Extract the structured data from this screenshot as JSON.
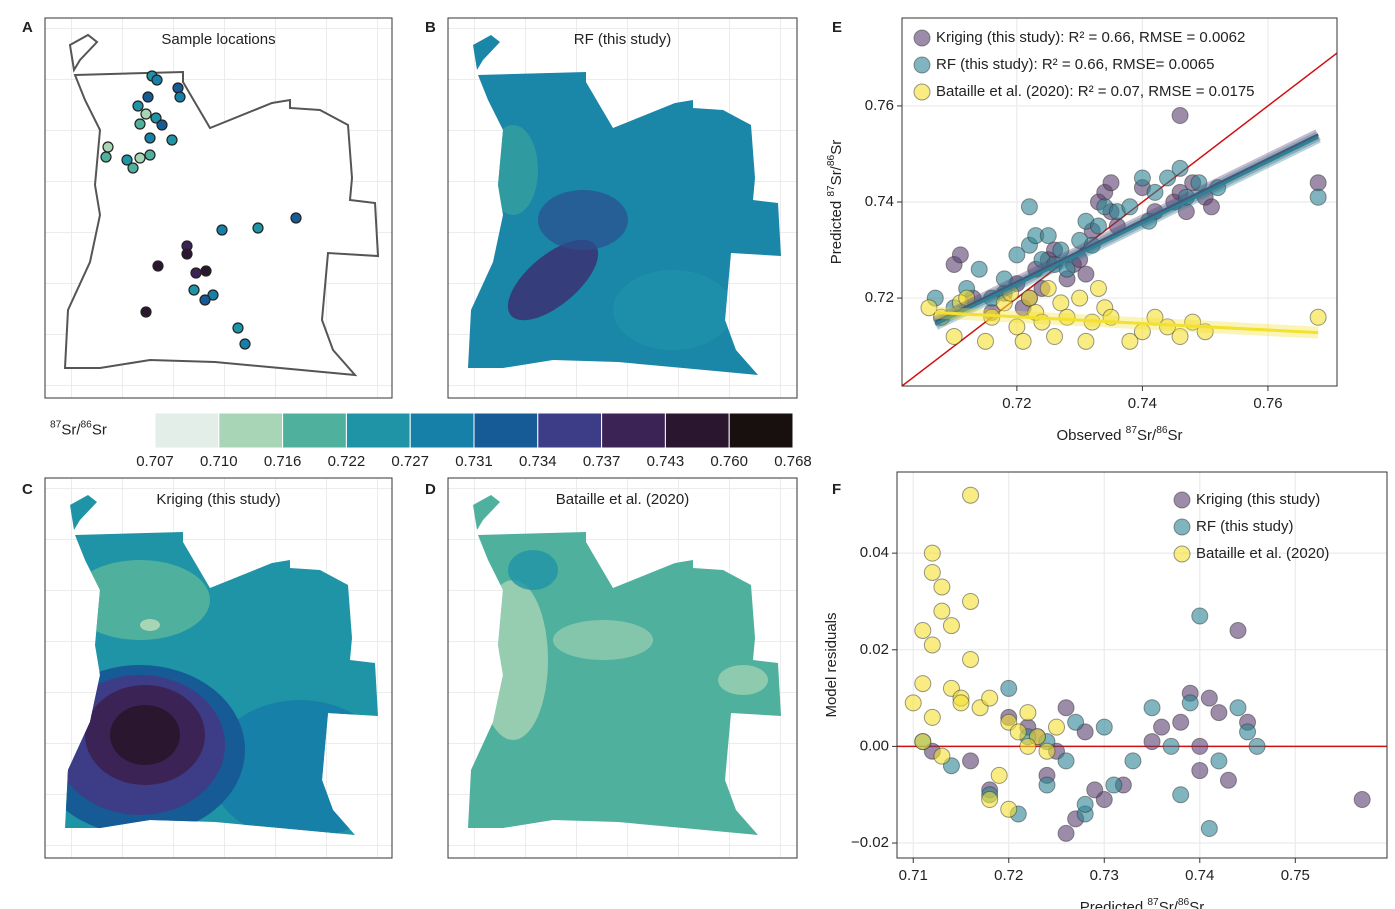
{
  "chart_data": [
    {
      "type": "map",
      "panel": "A",
      "title": "Sample locations"
    },
    {
      "type": "map",
      "panel": "B",
      "title": "RF (this study)"
    },
    {
      "type": "map",
      "panel": "C",
      "title": "Kriging (this study)"
    },
    {
      "type": "map",
      "panel": "D",
      "title": "Bataille et al. (2020)"
    },
    {
      "type": "scatter",
      "panel": "E",
      "xlabel": [
        "Observed ",
        "87",
        "Sr/",
        "86",
        "Sr"
      ],
      "ylabel": [
        "Predicted ",
        "87",
        "Sr/",
        "86",
        "Sr"
      ],
      "xlim": [
        0.7017,
        0.771
      ],
      "ylim": [
        0.7017,
        0.7783
      ],
      "xticks": [
        0.72,
        0.74,
        0.76
      ],
      "yticks": [
        0.72,
        0.74,
        0.76
      ],
      "grid": true,
      "diagonal": true,
      "legend": "top-left",
      "series": [
        {
          "name": "Kriging (this study): R² = 0.66, RMSE = 0.0062",
          "color": "#5b3f70",
          "x": [
            0.71,
            0.711,
            0.713,
            0.716,
            0.718,
            0.72,
            0.721,
            0.722,
            0.723,
            0.724,
            0.725,
            0.726,
            0.728,
            0.729,
            0.73,
            0.731,
            0.732,
            0.733,
            0.734,
            0.735,
            0.735,
            0.736,
            0.74,
            0.742,
            0.745,
            0.746,
            0.747,
            0.748,
            0.75,
            0.751,
            0.768,
            0.746
          ],
          "values": [
            0.727,
            0.729,
            0.72,
            0.717,
            0.721,
            0.723,
            0.718,
            0.72,
            0.726,
            0.722,
            0.728,
            0.73,
            0.724,
            0.727,
            0.728,
            0.725,
            0.734,
            0.74,
            0.742,
            0.744,
            0.738,
            0.735,
            0.743,
            0.738,
            0.74,
            0.742,
            0.738,
            0.744,
            0.741,
            0.739,
            0.744,
            0.758
          ],
          "fit": {
            "x": [
              0.707,
              0.768
            ],
            "y": [
              0.715,
              0.754
            ]
          }
        },
        {
          "name": "RF (this study): R² = 0.66, RMSE= 0.0065",
          "color": "#2b8494",
          "x": [
            0.707,
            0.71,
            0.712,
            0.714,
            0.716,
            0.718,
            0.72,
            0.722,
            0.723,
            0.724,
            0.725,
            0.726,
            0.727,
            0.728,
            0.73,
            0.731,
            0.732,
            0.733,
            0.734,
            0.736,
            0.738,
            0.74,
            0.741,
            0.742,
            0.744,
            0.746,
            0.747,
            0.749,
            0.752,
            0.768,
            0.722
          ],
          "values": [
            0.72,
            0.718,
            0.722,
            0.726,
            0.72,
            0.724,
            0.729,
            0.731,
            0.733,
            0.728,
            0.733,
            0.727,
            0.73,
            0.726,
            0.732,
            0.736,
            0.731,
            0.735,
            0.739,
            0.738,
            0.739,
            0.745,
            0.736,
            0.742,
            0.745,
            0.747,
            0.741,
            0.744,
            0.743,
            0.741,
            0.739
          ],
          "fit": {
            "x": [
              0.707,
              0.768
            ],
            "y": [
              0.7145,
              0.7535
            ]
          }
        },
        {
          "name": "Bataille et al. (2020): R² = 0.07, RMSE = 0.0175",
          "color": "#f3e030",
          "x": [
            0.706,
            0.708,
            0.71,
            0.711,
            0.712,
            0.715,
            0.716,
            0.718,
            0.719,
            0.72,
            0.721,
            0.722,
            0.723,
            0.724,
            0.725,
            0.726,
            0.727,
            0.728,
            0.73,
            0.731,
            0.732,
            0.733,
            0.734,
            0.735,
            0.738,
            0.74,
            0.742,
            0.744,
            0.746,
            0.748,
            0.75,
            0.768
          ],
          "values": [
            0.718,
            0.716,
            0.712,
            0.719,
            0.72,
            0.711,
            0.716,
            0.719,
            0.721,
            0.714,
            0.711,
            0.72,
            0.717,
            0.715,
            0.722,
            0.712,
            0.719,
            0.716,
            0.72,
            0.711,
            0.715,
            0.722,
            0.718,
            0.716,
            0.711,
            0.713,
            0.716,
            0.714,
            0.712,
            0.715,
            0.713,
            0.716
          ],
          "fit": {
            "x": [
              0.707,
              0.768
            ],
            "y": [
              0.717,
              0.7128
            ]
          }
        }
      ]
    },
    {
      "type": "scatter",
      "panel": "F",
      "xlabel": [
        "Predicted ",
        "87",
        "Sr/",
        "86",
        "Sr"
      ],
      "ylabel": [
        "Model residuals"
      ],
      "xlim": [
        0.7083,
        0.7596
      ],
      "ylim": [
        -0.0231,
        0.0568
      ],
      "xticks": [
        0.71,
        0.72,
        0.73,
        0.74,
        0.75
      ],
      "yticks": [
        {
          "value": -0.02,
          "label": "−0.02"
        },
        {
          "value": 0,
          "label": "0.00"
        },
        0.02,
        0.04
      ],
      "grid": true,
      "zero_line": true,
      "legend": "top-right",
      "series": [
        {
          "name": "Kriging (this study)",
          "color": "#5b3f70",
          "x": [
            0.712,
            0.716,
            0.718,
            0.72,
            0.722,
            0.723,
            0.724,
            0.725,
            0.726,
            0.727,
            0.728,
            0.73,
            0.732,
            0.735,
            0.738,
            0.739,
            0.74,
            0.741,
            0.742,
            0.743,
            0.744,
            0.745,
            0.757,
            0.726,
            0.729,
            0.736,
            0.74
          ],
          "values": [
            -0.001,
            -0.003,
            -0.009,
            0.006,
            0.004,
            0.002,
            -0.006,
            -0.001,
            0.008,
            -0.015,
            0.003,
            -0.011,
            -0.008,
            0.001,
            0.005,
            0.011,
            -0.005,
            0.01,
            0.007,
            -0.007,
            0.024,
            0.005,
            -0.011,
            -0.018,
            -0.009,
            0.004,
            0.0
          ]
        },
        {
          "name": "RF (this study)",
          "color": "#2b8494",
          "x": [
            0.711,
            0.714,
            0.718,
            0.72,
            0.721,
            0.722,
            0.724,
            0.726,
            0.727,
            0.728,
            0.73,
            0.731,
            0.733,
            0.735,
            0.737,
            0.738,
            0.739,
            0.74,
            0.741,
            0.742,
            0.744,
            0.745,
            0.746,
            0.728,
            0.724
          ],
          "values": [
            0.001,
            -0.004,
            -0.01,
            0.012,
            -0.014,
            0.002,
            -0.008,
            -0.003,
            0.005,
            -0.014,
            0.004,
            -0.008,
            -0.003,
            0.008,
            0.0,
            -0.01,
            0.009,
            0.027,
            -0.017,
            -0.003,
            0.008,
            0.003,
            0.0,
            -0.012,
            0.001
          ]
        },
        {
          "name": "Bataille et al. (2020)",
          "color": "#f3e030",
          "x": [
            0.71,
            0.711,
            0.711,
            0.712,
            0.712,
            0.712,
            0.713,
            0.713,
            0.714,
            0.714,
            0.715,
            0.716,
            0.716,
            0.716,
            0.717,
            0.718,
            0.719,
            0.72,
            0.721,
            0.722,
            0.723,
            0.724,
            0.725,
            0.711,
            0.712,
            0.713,
            0.715,
            0.718,
            0.72,
            0.722
          ],
          "values": [
            0.009,
            0.013,
            0.024,
            0.036,
            0.04,
            0.021,
            0.033,
            0.028,
            0.012,
            0.025,
            0.01,
            0.052,
            0.03,
            0.018,
            0.008,
            0.01,
            -0.006,
            0.005,
            0.003,
            0.007,
            0.002,
            -0.001,
            0.004,
            0.001,
            0.006,
            -0.002,
            0.009,
            -0.011,
            -0.013,
            0.0
          ]
        }
      ]
    }
  ],
  "colorbar": {
    "label": [
      "87",
      "Sr/",
      "86",
      "Sr"
    ],
    "ticks": [
      0.707,
      {
        "value": 0.71,
        "label": "0.710"
      },
      0.716,
      0.722,
      0.727,
      0.731,
      0.734,
      0.737,
      0.743,
      {
        "value": 0.76,
        "label": "0.760"
      },
      0.768
    ],
    "colors": [
      "#e3eee8",
      "#a8d5b5",
      "#4fb09e",
      "#1f94a6",
      "#1780a8",
      "#165b95",
      "#3d3c86",
      "#3c2356",
      "#2b1630",
      "#17100f"
    ]
  }
}
